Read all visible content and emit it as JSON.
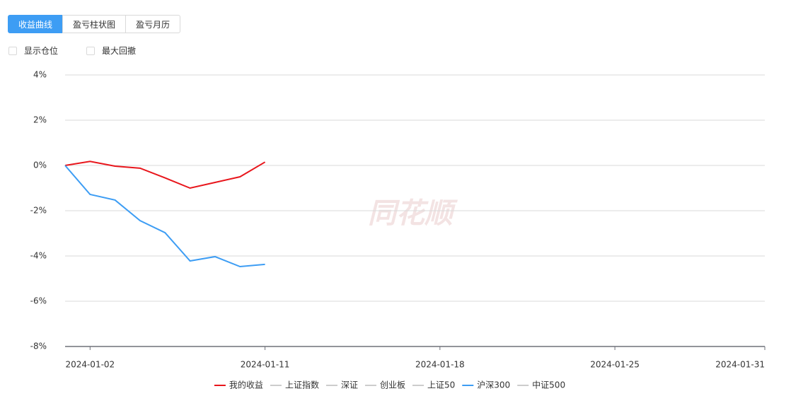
{
  "tabs": [
    "收益曲线",
    "盈亏柱状图",
    "盈亏月历"
  ],
  "checkboxes": [
    "显示仓位",
    "最大回撤"
  ],
  "chart_data": {
    "type": "line",
    "watermark": "同花顺",
    "categories": [
      null,
      "2024-01-02",
      null,
      null,
      null,
      null,
      null,
      null,
      "2024-01-11",
      null,
      null,
      null,
      null,
      null,
      null,
      "2024-01-18",
      null,
      null,
      null,
      null,
      null,
      null,
      "2024-01-25",
      null,
      null,
      null,
      null,
      null,
      "2024-01-31"
    ],
    "series": [
      {
        "name": "我的收益",
        "color": "#e8161c",
        "values": [
          0,
          0.18,
          -0.03,
          -0.12,
          -0.55,
          -1.0,
          -0.75,
          -0.5,
          0.15,
          null,
          null,
          null,
          null,
          null,
          null,
          null,
          null,
          null,
          null,
          null,
          null,
          null,
          null,
          null,
          null,
          null,
          null,
          null,
          null
        ]
      },
      {
        "name": "上证指数",
        "color": "#cccccc",
        "hidden": true
      },
      {
        "name": "深证",
        "color": "#cccccc",
        "hidden": true
      },
      {
        "name": "创业板",
        "color": "#cccccc",
        "hidden": true
      },
      {
        "name": "上证50",
        "color": "#cccccc",
        "hidden": true
      },
      {
        "name": "沪深300",
        "color": "#3d9df4",
        "values": [
          0,
          -1.28,
          -1.53,
          -2.44,
          -2.97,
          -4.22,
          -4.03,
          -4.47,
          -4.37,
          null,
          null,
          null,
          null,
          null,
          null,
          null,
          null,
          null,
          null,
          null,
          null,
          null,
          null,
          null,
          null,
          null,
          null,
          null,
          null
        ]
      },
      {
        "name": "中证500",
        "color": "#cccccc",
        "hidden": true
      }
    ],
    "ylim": [
      -8,
      4
    ],
    "yticks": [
      {
        "value": -8,
        "label": "-8%"
      },
      {
        "value": -6,
        "label": "-6%"
      },
      {
        "value": -4,
        "label": "-4%"
      },
      {
        "value": -2,
        "label": "-2%"
      },
      {
        "value": 0,
        "label": "0%"
      },
      {
        "value": 2,
        "label": "2%"
      },
      {
        "value": 4,
        "label": "4%"
      }
    ],
    "grid": true
  }
}
